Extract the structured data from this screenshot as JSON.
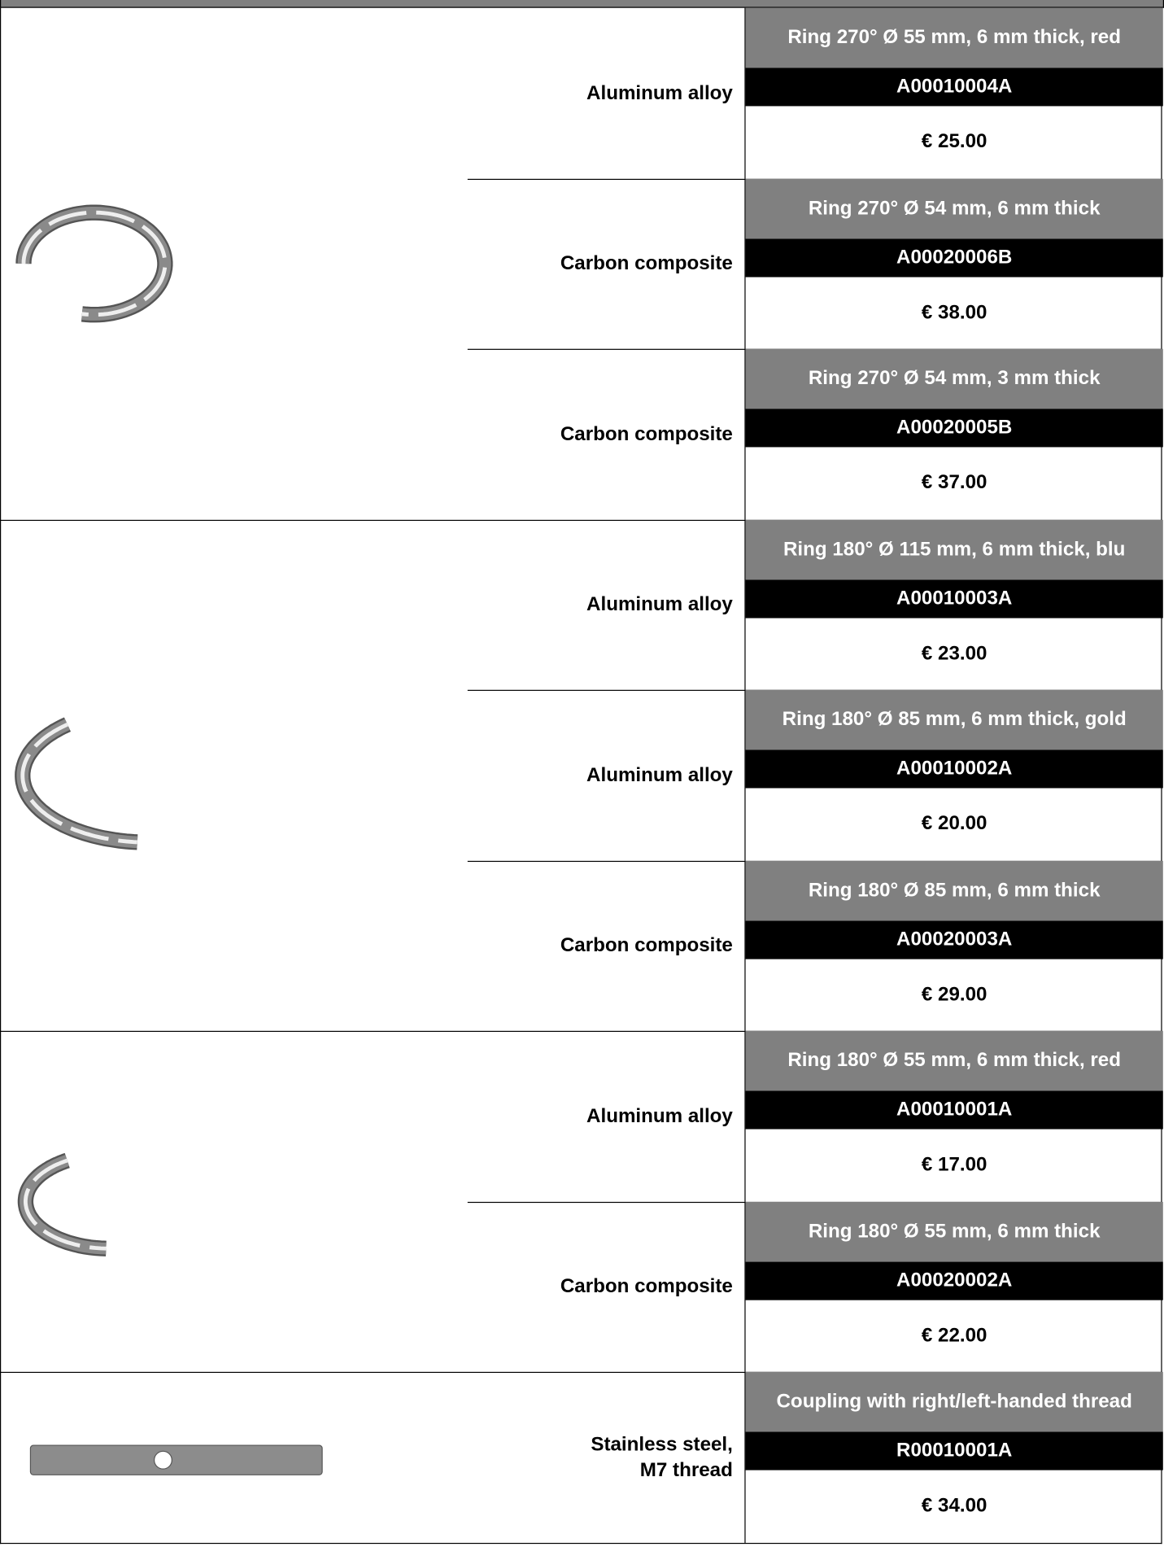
{
  "groups": [
    {
      "items": [
        {
          "material": "Aluminum alloy",
          "name": "Ring 270° Ø 55 mm, 6 mm thick, red",
          "code": "A00010004A",
          "price": "€ 25.00"
        },
        {
          "material": "Carbon composite",
          "name": "Ring 270° Ø 54 mm, 6 mm thick",
          "code": "A00020006B",
          "price": "€ 38.00"
        },
        {
          "material": "Carbon composite",
          "name": "Ring 270° Ø 54 mm, 3 mm thick",
          "code": "A00020005B",
          "price": "€ 37.00"
        }
      ]
    },
    {
      "items": [
        {
          "material": "Aluminum alloy",
          "name": "Ring 180° Ø 115 mm, 6 mm thick, blu",
          "code": "A00010003A",
          "price": "€ 23.00"
        },
        {
          "material": "Aluminum alloy",
          "name": "Ring 180° Ø 85 mm, 6 mm thick, gold",
          "code": "A00010002A",
          "price": "€ 20.00"
        },
        {
          "material": "Carbon composite",
          "name": "Ring 180° Ø 85 mm, 6 mm thick",
          "code": "A00020003A",
          "price": "€ 29.00"
        }
      ]
    },
    {
      "items": [
        {
          "material": "Aluminum alloy",
          "name": "Ring 180° Ø 55 mm, 6 mm thick, red",
          "code": "A00010001A",
          "price": "€ 17.00"
        },
        {
          "material": "Carbon composite",
          "name": "Ring 180° Ø 55 mm, 6 mm thick",
          "code": "A00020002A",
          "price": "€ 22.00"
        }
      ]
    },
    {
      "items": [
        {
          "material": "Stainless steel,\nM7 thread",
          "name": "Coupling with right/left-handed thread",
          "code": "R00010001A",
          "price": "€ 34.00"
        }
      ]
    }
  ]
}
